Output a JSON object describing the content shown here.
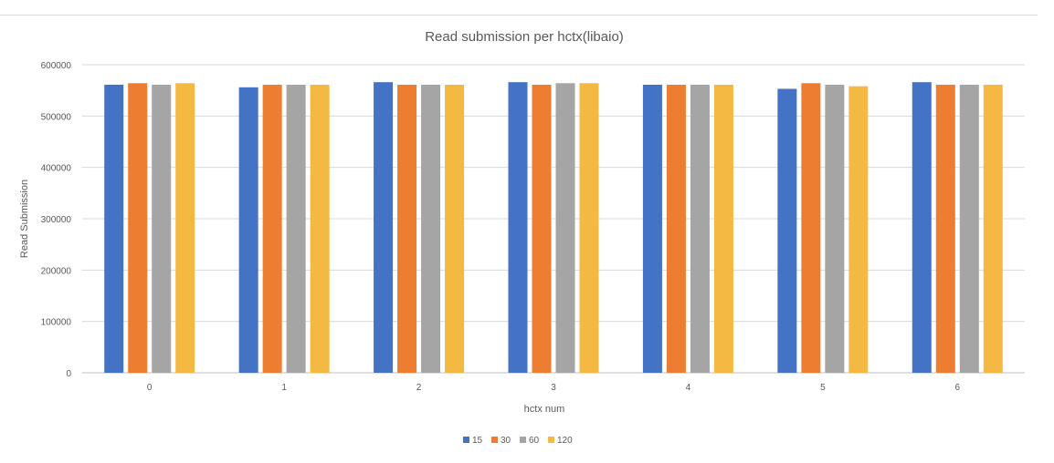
{
  "chart_data": {
    "type": "bar",
    "title": "Read submission per hctx(libaio)",
    "xlabel": "hctx num",
    "ylabel": "Read Submission",
    "categories": [
      "0",
      "1",
      "2",
      "3",
      "4",
      "5",
      "6"
    ],
    "series": [
      {
        "name": "15",
        "color": "#4472C4",
        "values": [
          561000,
          556000,
          566000,
          566000,
          561000,
          553000,
          566000
        ]
      },
      {
        "name": "30",
        "color": "#ED7D31",
        "values": [
          564000,
          561000,
          561000,
          561000,
          561000,
          564000,
          561000
        ]
      },
      {
        "name": "60",
        "color": "#A5A5A5",
        "values": [
          561000,
          561000,
          561000,
          564000,
          561000,
          561000,
          561000
        ]
      },
      {
        "name": "120",
        "color": "#F4B942",
        "values": [
          564000,
          561000,
          561000,
          564000,
          561000,
          558000,
          561000
        ]
      }
    ],
    "ylim": [
      0,
      600000
    ],
    "yticks": [
      "0",
      "100000",
      "200000",
      "300000",
      "400000",
      "500000",
      "600000"
    ],
    "grid": true,
    "legend": "bottom"
  }
}
